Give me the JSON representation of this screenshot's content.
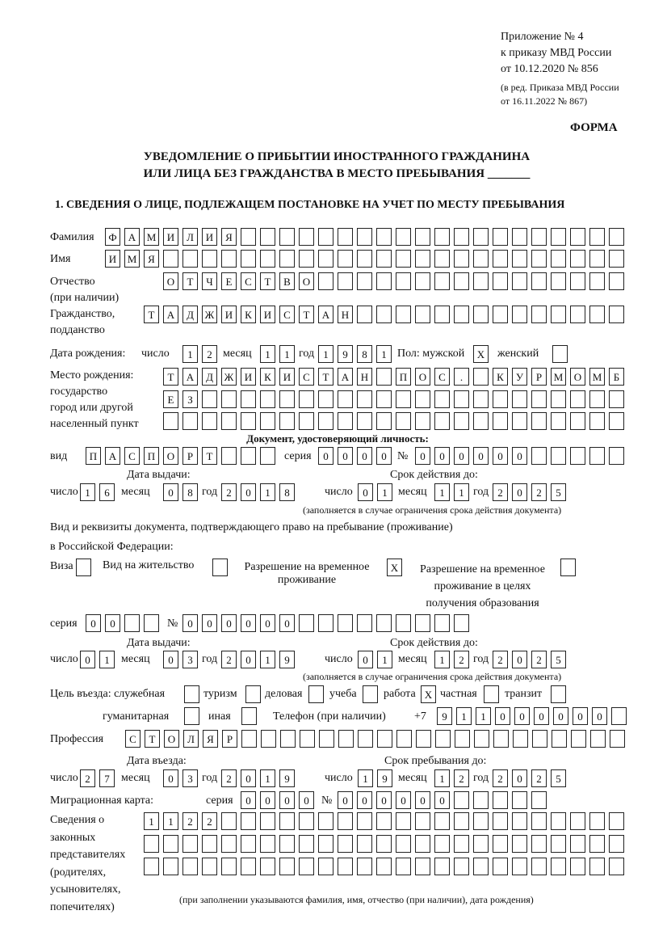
{
  "header": {
    "annex": "Приложение № 4",
    "order": "к приказу МВД России",
    "order_date": "от 10.12.2020 № 856",
    "revision_1": "(в ред. Приказа МВД России",
    "revision_2": "от 16.11.2022 № 867)",
    "form_label": "ФОРМА",
    "title_1": "УВЕДОМЛЕНИЕ О ПРИБЫТИИ ИНОСТРАННОГО ГРАЖДАНИНА",
    "title_2": "ИЛИ ЛИЦА БЕЗ ГРАЖДАНСТВА В МЕСТО ПРЕБЫВАНИЯ _______",
    "section_1": "1. СВЕДЕНИЯ О ЛИЦЕ, ПОДЛЕЖАЩЕМ ПОСТАНОВКЕ НА УЧЕТ ПО МЕСТУ ПРЕБЫВАНИЯ"
  },
  "person": {
    "surname": {
      "label": "Фамилия",
      "boxes": [
        "Ф",
        "А",
        "М",
        "И",
        "Л",
        "И",
        "Я",
        "",
        "",
        "",
        "",
        "",
        "",
        "",
        "",
        "",
        "",
        "",
        "",
        "",
        "",
        "",
        "",
        "",
        "",
        "",
        ""
      ]
    },
    "name": {
      "label": "Имя",
      "boxes": [
        "И",
        "М",
        "Я",
        "",
        "",
        "",
        "",
        "",
        "",
        "",
        "",
        "",
        "",
        "",
        "",
        "",
        "",
        "",
        "",
        "",
        "",
        "",
        "",
        "",
        "",
        "",
        ""
      ]
    },
    "patronymic": {
      "label_1": "Отчество",
      "label_2": "(при наличии)",
      "boxes": [
        "О",
        "Т",
        "Ч",
        "Е",
        "С",
        "Т",
        "В",
        "О",
        "",
        "",
        "",
        "",
        "",
        "",
        "",
        "",
        "",
        "",
        "",
        "",
        "",
        "",
        "",
        ""
      ]
    },
    "citizenship": {
      "label_1": "Гражданство,",
      "label_2": "подданство",
      "boxes": [
        "Т",
        "А",
        "Д",
        "Ж",
        "И",
        "К",
        "И",
        "С",
        "Т",
        "А",
        "Н",
        "",
        "",
        "",
        "",
        "",
        "",
        "",
        "",
        "",
        "",
        "",
        "",
        "",
        ""
      ]
    },
    "birth_date": {
      "label": "Дата рождения:",
      "day_label": "число",
      "day": [
        "1",
        "2"
      ],
      "month_label": "месяц",
      "month": [
        "1",
        "1"
      ],
      "year_label": "год",
      "year": [
        "1",
        "9",
        "8",
        "1"
      ]
    },
    "sex": {
      "label": "Пол: мужской",
      "male": [
        "X"
      ],
      "female_label": "женский",
      "female": [
        ""
      ]
    },
    "birth_place": {
      "label_1": "Место рождения:",
      "label_2": "государство",
      "label_3": "город или другой",
      "label_4": "населенный пункт",
      "row_1": [
        "Т",
        "А",
        "Д",
        "Ж",
        "И",
        "К",
        "И",
        "С",
        "Т",
        "А",
        "Н",
        "",
        "П",
        "О",
        "С",
        ".",
        "",
        "К",
        "У",
        "Р",
        "М",
        "О",
        "М",
        "Б"
      ],
      "row_2": [
        "Е",
        "З",
        "",
        "",
        "",
        "",
        "",
        "",
        "",
        "",
        "",
        "",
        "",
        "",
        "",
        "",
        "",
        "",
        "",
        "",
        "",
        "",
        "",
        ""
      ],
      "row_3": [
        "",
        "",
        "",
        "",
        "",
        "",
        "",
        "",
        "",
        "",
        "",
        "",
        "",
        "",
        "",
        "",
        "",
        "",
        "",
        "",
        "",
        "",
        "",
        ""
      ]
    }
  },
  "identity_doc": {
    "heading": "Документ, удостоверяющий личность:",
    "type_label": "вид",
    "type": [
      "П",
      "А",
      "С",
      "П",
      "О",
      "Р",
      "Т",
      "",
      "",
      ""
    ],
    "series_label": "серия",
    "series": [
      "0",
      "0",
      "0",
      "0"
    ],
    "number_label": "№",
    "number": [
      "0",
      "0",
      "0",
      "0",
      "0",
      "0",
      "",
      "",
      "",
      "",
      ""
    ],
    "issue_label": "Дата выдачи:",
    "valid_label": "Срок действия до:",
    "issue": {
      "day": [
        "1",
        "6"
      ],
      "month": [
        "0",
        "8"
      ],
      "year": [
        "2",
        "0",
        "1",
        "8"
      ]
    },
    "valid": {
      "day": [
        "0",
        "1"
      ],
      "month": [
        "1",
        "1"
      ],
      "year": [
        "2",
        "0",
        "2",
        "5"
      ]
    },
    "note": "(заполняется в случае ограничения срока действия документа)"
  },
  "stay_doc": {
    "heading_1": "Вид и реквизиты документа, подтверждающего право на пребывание (проживание)",
    "heading_2": "в Российской Федерации:",
    "visa_label": "Виза",
    "visa": [
      ""
    ],
    "residence_label": "Вид на жительство",
    "residence": [
      ""
    ],
    "temp_label_1": "Разрешение на временное",
    "temp_label_2": "проживание",
    "temp": [
      "X"
    ],
    "edu_label_1": "Разрешение на временное",
    "edu_label_2": "проживание в целях",
    "edu_label_3": "получения образования",
    "edu": [
      ""
    ],
    "series_label": "серия",
    "series": [
      "0",
      "0",
      "",
      ""
    ],
    "number_label": "№",
    "number": [
      "0",
      "0",
      "0",
      "0",
      "0",
      "0",
      "",
      "",
      "",
      "",
      "",
      "",
      "",
      "",
      ""
    ],
    "issue_label": "Дата выдачи:",
    "valid_label": "Срок действия до:",
    "issue": {
      "day": [
        "0",
        "1"
      ],
      "month": [
        "0",
        "3"
      ],
      "year": [
        "2",
        "0",
        "1",
        "9"
      ]
    },
    "valid": {
      "day": [
        "0",
        "1"
      ],
      "month": [
        "1",
        "2"
      ],
      "year": [
        "2",
        "0",
        "2",
        "5"
      ]
    },
    "note": "(заполняется в случае ограничения срока действия документа)"
  },
  "purpose": {
    "label": "Цель въезда: служебная",
    "official": [
      ""
    ],
    "tourism_label": "туризм",
    "tourism": [
      ""
    ],
    "business_label": "деловая",
    "business": [
      ""
    ],
    "study_label": "учеба",
    "study": [
      ""
    ],
    "work_label": "работа",
    "work": [
      "X"
    ],
    "private_label": "частная",
    "private": [
      ""
    ],
    "transit_label": "транзит",
    "transit": [
      ""
    ],
    "humanitarian_label": "гуманитарная",
    "humanitarian": [
      ""
    ],
    "other_label": "иная",
    "other": [
      ""
    ]
  },
  "phone": {
    "label": "Телефон (при наличии)",
    "prefix": "+7",
    "boxes": [
      "9",
      "1",
      "1",
      "0",
      "0",
      "0",
      "0",
      "0",
      "0",
      ""
    ]
  },
  "profession": {
    "label": "Профессия",
    "boxes": [
      "С",
      "Т",
      "О",
      "Л",
      "Я",
      "Р",
      "",
      "",
      "",
      "",
      "",
      "",
      "",
      "",
      "",
      "",
      "",
      "",
      "",
      "",
      "",
      "",
      "",
      "",
      "",
      ""
    ]
  },
  "entry": {
    "entry_label": "Дата въезда:",
    "stay_label": "Срок пребывания до:",
    "entry": {
      "day": [
        "2",
        "7"
      ],
      "month": [
        "0",
        "3"
      ],
      "year": [
        "2",
        "0",
        "1",
        "9"
      ]
    },
    "stay": {
      "day": [
        "1",
        "9"
      ],
      "month": [
        "1",
        "2"
      ],
      "year": [
        "2",
        "0",
        "2",
        "5"
      ]
    }
  },
  "date_labels": {
    "day": "число",
    "month": "месяц",
    "year": "год"
  },
  "migration_card": {
    "label": "Миграционная карта:",
    "series_label": "серия",
    "series": [
      "0",
      "0",
      "0",
      "0"
    ],
    "number_label": "№",
    "number": [
      "0",
      "0",
      "0",
      "0",
      "0",
      "0",
      "",
      "",
      "",
      "",
      ""
    ]
  },
  "representatives": {
    "label_1": "Сведения о",
    "label_2": "законных",
    "label_3": "представителях",
    "label_4": "(родителях,",
    "label_5": "усыновителях,",
    "label_6": "попечителях)",
    "row_1": [
      "1",
      "1",
      "2",
      "2",
      "",
      "",
      "",
      "",
      "",
      "",
      "",
      "",
      "",
      "",
      "",
      "",
      "",
      "",
      "",
      "",
      "",
      "",
      "",
      "",
      ""
    ],
    "row_2": [
      "",
      "",
      "",
      "",
      "",
      "",
      "",
      "",
      "",
      "",
      "",
      "",
      "",
      "",
      "",
      "",
      "",
      "",
      "",
      "",
      "",
      "",
      "",
      "",
      ""
    ],
    "row_3": [
      "",
      "",
      "",
      "",
      "",
      "",
      "",
      "",
      "",
      "",
      "",
      "",
      "",
      "",
      "",
      "",
      "",
      "",
      "",
      "",
      "",
      "",
      "",
      "",
      ""
    ],
    "note": "(при заполнении указываются фамилия, имя, отчество (при наличии), дата рождения)"
  }
}
